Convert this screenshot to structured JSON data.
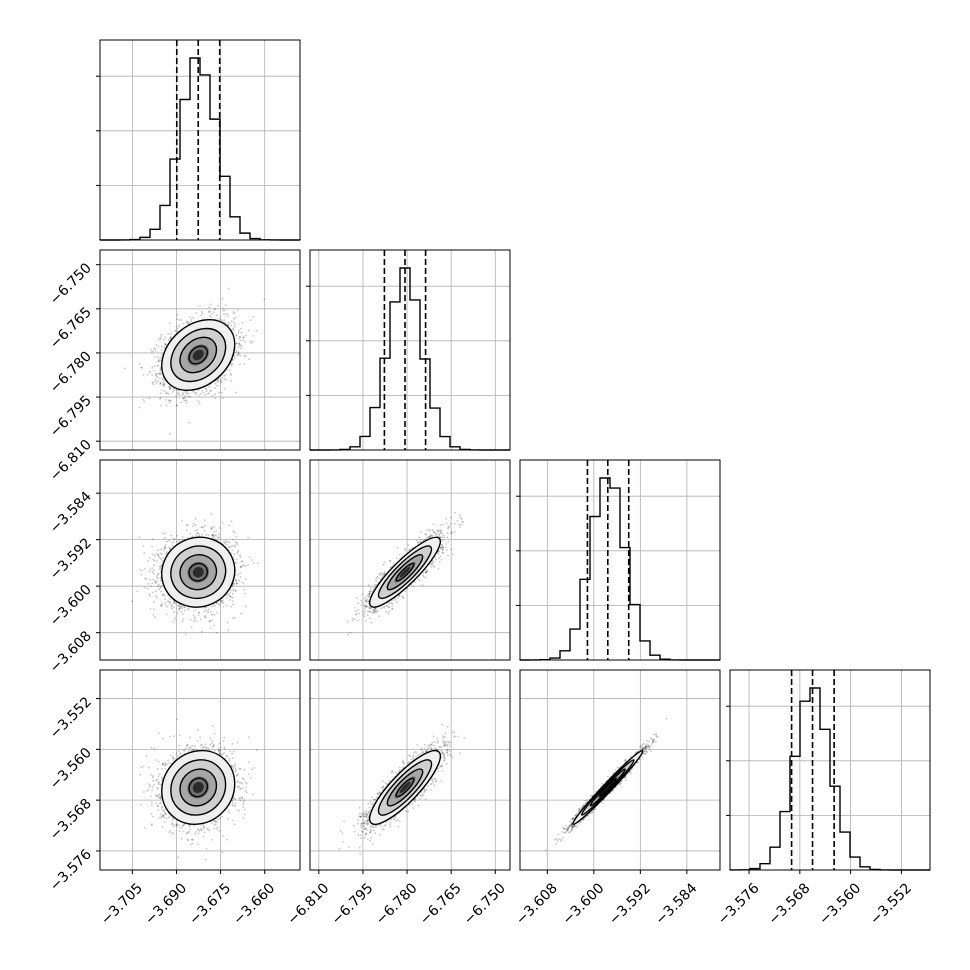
{
  "chart_data": {
    "type": "corner",
    "title": "",
    "parameters": [
      {
        "label": "",
        "range": [
          -3.716,
          -3.648
        ],
        "ticks": [
          "−3.705",
          "−3.690",
          "−3.675",
          "−3.660"
        ],
        "tick_values": [
          -3.705,
          -3.69,
          -3.675,
          -3.66
        ],
        "quantiles": [
          -3.6899,
          -3.6826,
          -3.6753
        ],
        "median": -3.6826,
        "sigma": 0.0062
      },
      {
        "label": "",
        "range": [
          -6.813,
          -6.745
        ],
        "ticks": [
          "−6.810",
          "−6.795",
          "−6.780",
          "−6.765",
          "−6.750"
        ],
        "tick_values": [
          -6.81,
          -6.795,
          -6.78,
          -6.765,
          -6.75
        ],
        "quantiles": [
          -6.7877,
          -6.7807,
          -6.7737
        ],
        "median": -6.7807,
        "sigma": 0.006
      },
      {
        "label": "",
        "range": [
          -3.6127,
          -3.5783
        ],
        "ticks": [
          "−3.608",
          "−3.600",
          "−3.592",
          "−3.584"
        ],
        "tick_values": [
          -3.608,
          -3.6,
          -3.592,
          -3.584
        ],
        "quantiles": [
          -3.6011,
          -3.5976,
          -3.594
        ],
        "median": -3.5976,
        "sigma": 0.003
      },
      {
        "label": "",
        "range": [
          -3.579,
          -3.5475
        ],
        "ticks": [
          "−3.576",
          "−3.568",
          "−3.560",
          "−3.552"
        ],
        "tick_values": [
          -3.576,
          -3.568,
          -3.56,
          -3.552
        ],
        "quantiles": [
          -3.5693,
          -3.566,
          -3.5626
        ],
        "median": -3.566,
        "sigma": 0.0029
      }
    ],
    "ytick_labels": {
      "row1": {
        "ticks": [
          "−6.750",
          "−6.765",
          "−6.780",
          "−6.795",
          "−6.810"
        ],
        "tick_values": [
          -6.75,
          -6.765,
          -6.78,
          -6.795,
          -6.81
        ]
      },
      "row2": {
        "ticks": [
          "−3.584",
          "−3.592",
          "−3.600",
          "−3.608"
        ],
        "tick_values": [
          -3.584,
          -3.592,
          -3.6,
          -3.608
        ]
      },
      "row3": {
        "ticks": [
          "−3.552",
          "−3.560",
          "−3.568",
          "−3.576"
        ],
        "tick_values": [
          -3.552,
          -3.56,
          -3.568,
          -3.576
        ]
      }
    },
    "correlations": {
      "0-1": 0.3,
      "0-2": 0.05,
      "0-3": 0.1,
      "1-2": 0.88,
      "1-3": 0.85,
      "2-3": 0.985
    },
    "histogram_bins": 20,
    "quantile_levels": [
      0.16,
      0.5,
      0.84
    ],
    "contour_levels_sigma": [
      0.5,
      1.0,
      1.5,
      2.0
    ],
    "colors": {
      "line": "#000000",
      "grid": "#b0b0b0",
      "points": "#000000",
      "dashed": "#000000"
    },
    "grid": true
  }
}
